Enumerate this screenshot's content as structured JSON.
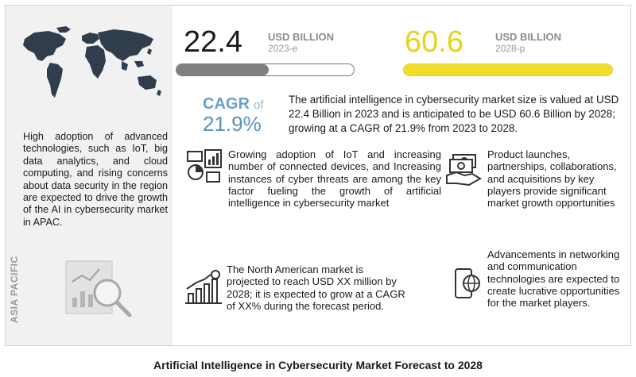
{
  "left_panel": {
    "description": "High adoption of advanced technologies, such as IoT, big data analytics, and cloud computing, and rising concerns about data security in the region are expected to drive the growth of the AI in cybersecurity market in APAC.",
    "region_label": "ASIA PACIFIC"
  },
  "market_2023": {
    "value": "22.4",
    "unit": "USD BILLION",
    "year": "2023-e",
    "bar_fill_percent": 52
  },
  "market_2028": {
    "value": "60.6",
    "unit": "USD BILLION",
    "year": "2028-p",
    "bar_fill_percent": 100
  },
  "cagr": {
    "label": "CAGR",
    "of": "of",
    "value": "21.9%"
  },
  "summary": "The artificial intelligence in cybersecurity market size is valued at USD 22.4 Billion in 2023 and is anticipated to be USD 60.6 Billion by 2028; growing at a CAGR of 21.9% from 2023 to 2028.",
  "drivers": {
    "iot": "Growing adoption of IoT and increasing number of connected devices, and Increasing instances of cyber threats are among the key factor fueling the growth of artificial intelligence in cybersecurity market",
    "players": "Product launches, partnerships, collaborations, and acquisitions by key players provide significant market growth opportunities",
    "north_america": "The North American market is projected to reach USD XX million by 2028; it is expected to grow at a CAGR of XX% during the forecast period.",
    "networking": "Advancements in networking and communication technologies are expected to create lucrative opportunities for the market players."
  },
  "icons": [
    "world-map-icon",
    "analytics-magnifier-icon",
    "devices-chart-icon",
    "money-handshake-icon",
    "growth-chart-icon",
    "smartphone-globe-icon"
  ],
  "colors": {
    "accent_yellow": "#f0dc2a",
    "accent_blue": "#5a93be",
    "bar_gray": "#808080",
    "panel_gray": "#f1f1f1"
  },
  "caption": "Artificial Intelligence in Cybersecurity Market Forecast to 2028"
}
